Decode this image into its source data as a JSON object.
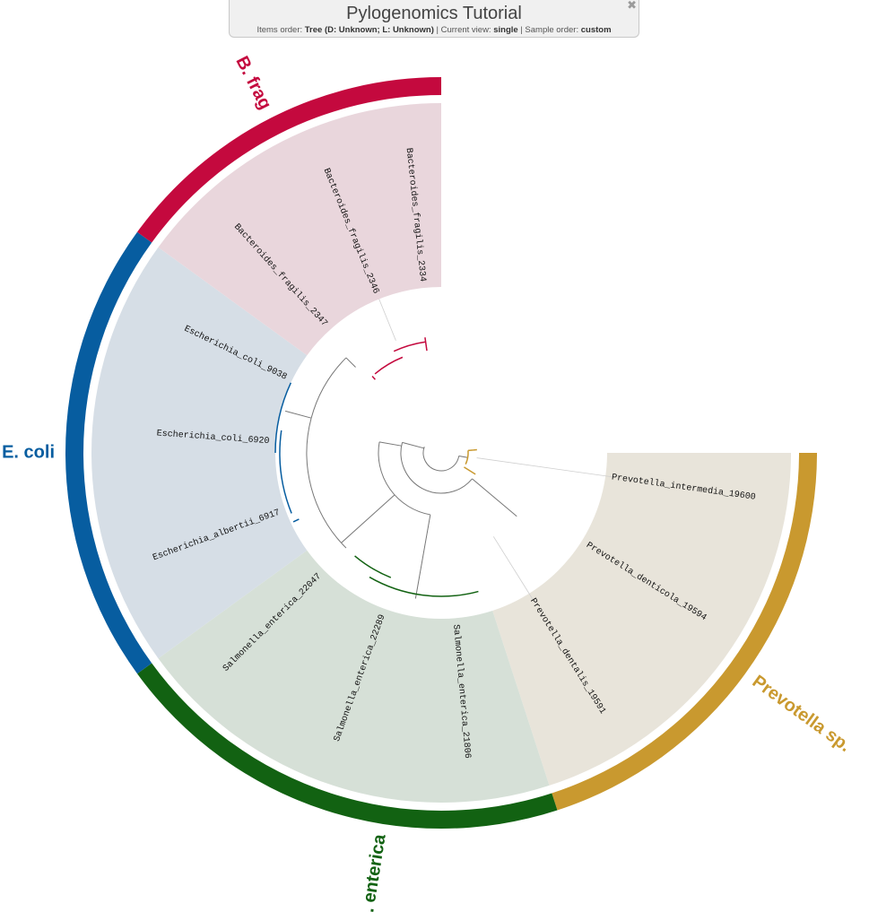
{
  "header": {
    "title": "Pylogenomics Tutorial",
    "items_order_label": "Items order:",
    "items_order_value": "Tree (D: Unknown; L: Unknown)",
    "current_view_label": "Current view:",
    "current_view_value": "single",
    "sample_order_label": "Sample order:",
    "sample_order_value": "custom",
    "close_icon": "close-icon"
  },
  "tree": {
    "leaves": [
      {
        "id": "leaf-prevotella-intermedia",
        "label": "Prevotella_intermedia_19600"
      },
      {
        "id": "leaf-prevotella-denticola",
        "label": "Prevotella_denticola_19594"
      },
      {
        "id": "leaf-prevotella-dentalis",
        "label": "Prevotella_dentalis_19591"
      },
      {
        "id": "leaf-salmonella-21806",
        "label": "Salmonella_enterica_21806"
      },
      {
        "id": "leaf-salmonella-22289",
        "label": "Salmonella_enterica_22289"
      },
      {
        "id": "leaf-salmonella-22047",
        "label": "Salmonella_enterica_22047"
      },
      {
        "id": "leaf-escherichia-albertii",
        "label": "Escherichia_albertii_6917"
      },
      {
        "id": "leaf-escherichia-coli-6920",
        "label": "Escherichia_coli_6920"
      },
      {
        "id": "leaf-escherichia-coli-9038",
        "label": "Escherichia_coli_9038"
      },
      {
        "id": "leaf-bacteroides-2347",
        "label": "Bacteroides_fragilis_2347"
      },
      {
        "id": "leaf-bacteroides-2346",
        "label": "Bacteroides_fragilis_2346"
      },
      {
        "id": "leaf-bacteroides-2334",
        "label": "Bacteroides_fragilis_2334"
      }
    ],
    "clades": [
      {
        "id": "prevotella",
        "label": "Prevotella sp.",
        "color": "#c9992f",
        "bg": "#e8e4da"
      },
      {
        "id": "salmonella",
        "label": "S. enterica",
        "color": "#126212",
        "bg": "#d6e0d7"
      },
      {
        "id": "ecoli",
        "label": "E. coli",
        "color": "#075da0",
        "bg": "#d6dee6"
      },
      {
        "id": "bfrag",
        "label": "B. frag",
        "color": "#c4093e",
        "bg": "#e9d6dc"
      }
    ],
    "branch_color": "#777777"
  }
}
